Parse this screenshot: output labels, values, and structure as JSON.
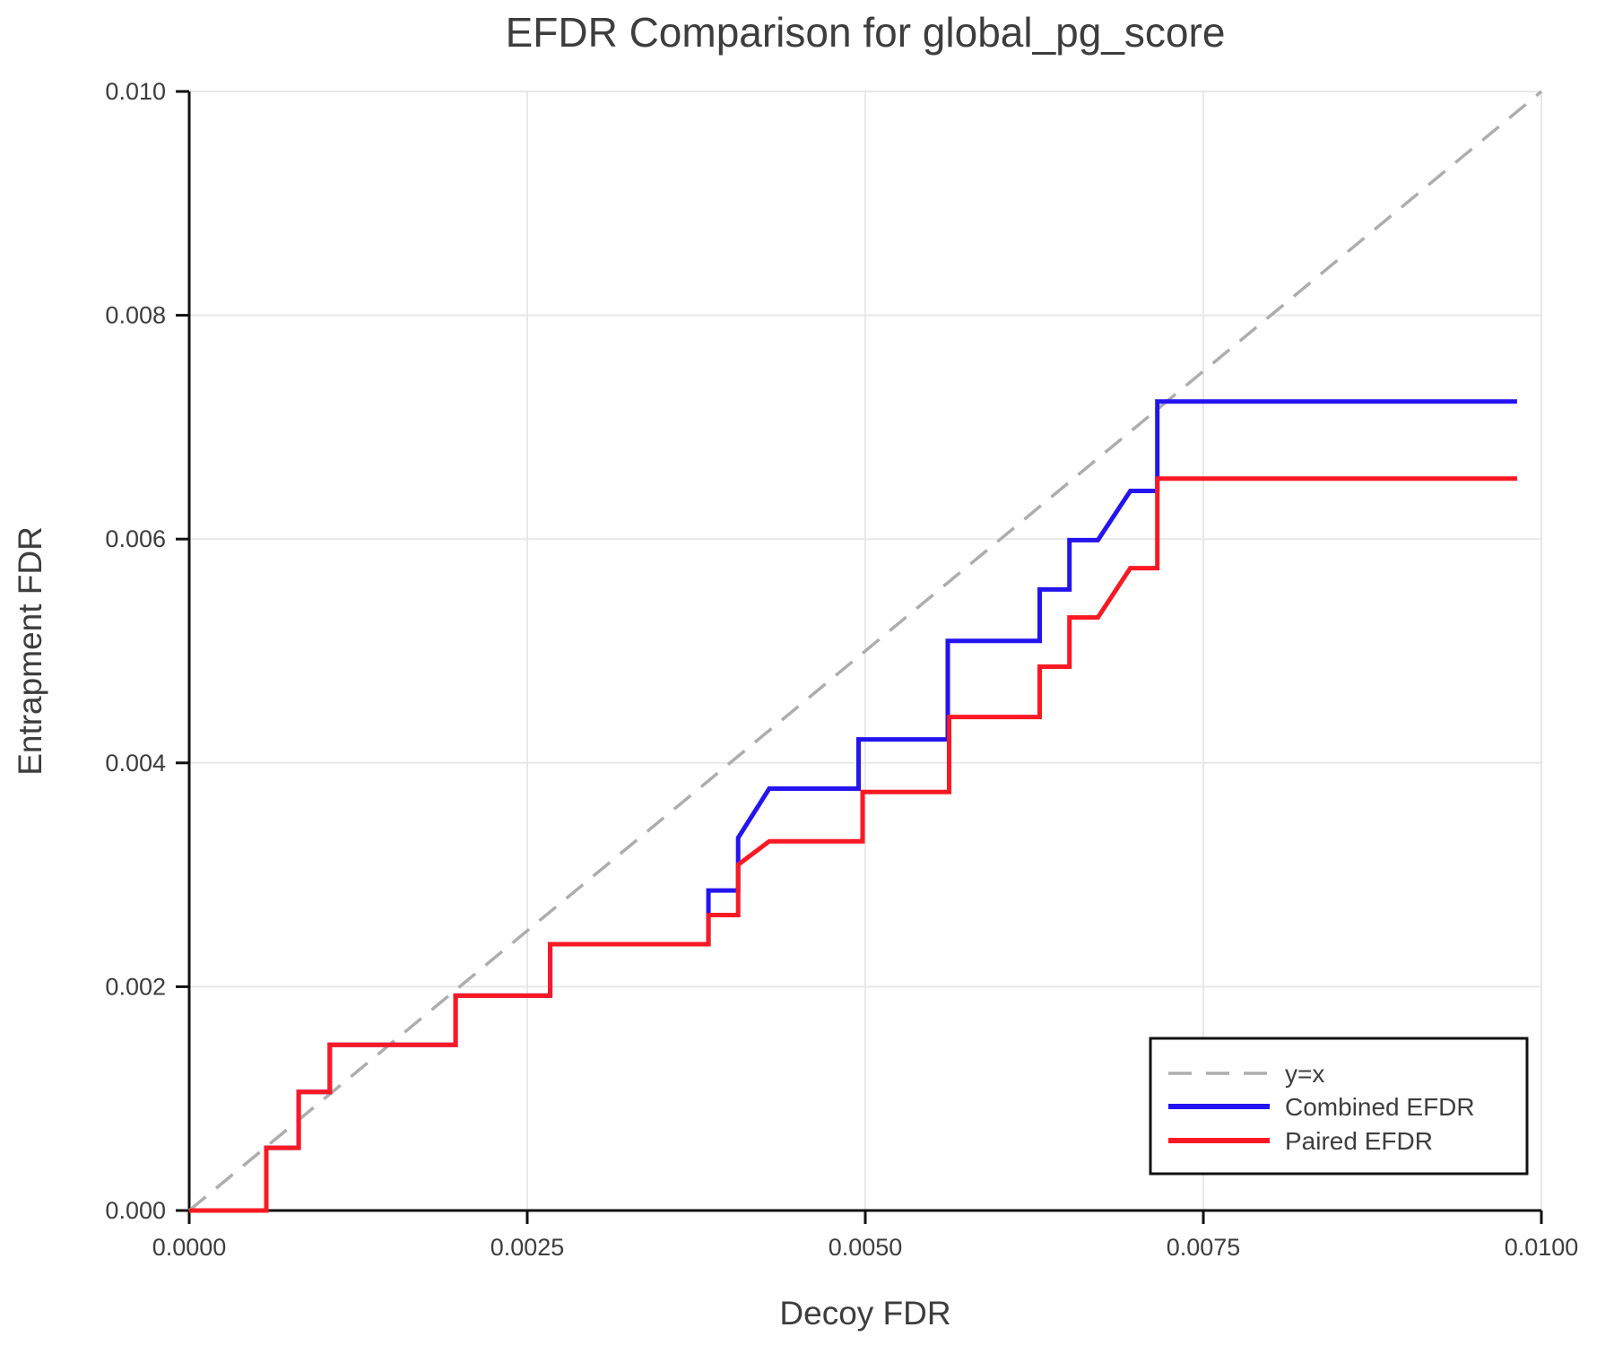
{
  "title": "EFDR Comparison for global_pg_score",
  "chart_data": {
    "type": "line",
    "title": "EFDR Comparison for global_pg_score",
    "xlabel": "Decoy FDR",
    "ylabel": "Entrapment FDR",
    "xlim": [
      0.0,
      0.01
    ],
    "ylim": [
      0.0,
      0.01
    ],
    "x_ticks": [
      0.0,
      0.0025,
      0.005,
      0.0075,
      0.01
    ],
    "x_tick_labels": [
      "0.0000",
      "0.0025",
      "0.0050",
      "0.0075",
      "0.0100"
    ],
    "y_ticks": [
      0.0,
      0.002,
      0.004,
      0.006,
      0.008,
      0.01
    ],
    "y_tick_labels": [
      "0.000",
      "0.002",
      "0.004",
      "0.006",
      "0.008",
      "0.010"
    ],
    "grid": true,
    "grid_color": "#e8e8e8",
    "axis_color": "#111111",
    "text_color": "#3d3d3d",
    "legend_position": "lower right",
    "identity_line": {
      "label": "y=x",
      "color": "#adadad",
      "dashed": true,
      "from": [
        0.0,
        0.0
      ],
      "to": [
        0.01,
        0.01
      ]
    },
    "series": [
      {
        "name": "Combined EFDR",
        "color": "#2314f0",
        "points": [
          [
            0.0,
            0.0
          ],
          [
            0.00057,
            0.0
          ],
          [
            0.00057,
            0.00056
          ],
          [
            0.00081,
            0.00056
          ],
          [
            0.00081,
            0.00106
          ],
          [
            0.00104,
            0.00106
          ],
          [
            0.00104,
            0.00148
          ],
          [
            0.00197,
            0.00148
          ],
          [
            0.00197,
            0.00192
          ],
          [
            0.00267,
            0.00192
          ],
          [
            0.00267,
            0.00238
          ],
          [
            0.00384,
            0.00238
          ],
          [
            0.00384,
            0.00286
          ],
          [
            0.00406,
            0.00286
          ],
          [
            0.00406,
            0.00333
          ],
          [
            0.00429,
            0.00377
          ],
          [
            0.00495,
            0.00377
          ],
          [
            0.00495,
            0.00421
          ],
          [
            0.00561,
            0.00421
          ],
          [
            0.00561,
            0.00509
          ],
          [
            0.00629,
            0.00509
          ],
          [
            0.00629,
            0.00555
          ],
          [
            0.00651,
            0.00555
          ],
          [
            0.00651,
            0.00599
          ],
          [
            0.00672,
            0.00599
          ],
          [
            0.00696,
            0.00643
          ],
          [
            0.00716,
            0.00643
          ],
          [
            0.00716,
            0.00723
          ],
          [
            0.00982,
            0.00723
          ]
        ]
      },
      {
        "name": "Paired EFDR",
        "color": "#fa1923",
        "points": [
          [
            0.0,
            0.0
          ],
          [
            0.00057,
            0.0
          ],
          [
            0.00057,
            0.00056
          ],
          [
            0.00081,
            0.00056
          ],
          [
            0.00081,
            0.00106
          ],
          [
            0.00104,
            0.00106
          ],
          [
            0.00104,
            0.00148
          ],
          [
            0.00197,
            0.00148
          ],
          [
            0.00197,
            0.00192
          ],
          [
            0.00267,
            0.00192
          ],
          [
            0.00267,
            0.00238
          ],
          [
            0.00384,
            0.00238
          ],
          [
            0.00384,
            0.00264
          ],
          [
            0.00406,
            0.00264
          ],
          [
            0.00406,
            0.00309
          ],
          [
            0.00429,
            0.0033
          ],
          [
            0.00498,
            0.0033
          ],
          [
            0.00498,
            0.00374
          ],
          [
            0.00562,
            0.00374
          ],
          [
            0.00562,
            0.00441
          ],
          [
            0.00629,
            0.00441
          ],
          [
            0.00629,
            0.00486
          ],
          [
            0.00651,
            0.00486
          ],
          [
            0.00651,
            0.0053
          ],
          [
            0.00672,
            0.0053
          ],
          [
            0.00696,
            0.00574
          ],
          [
            0.00716,
            0.00574
          ],
          [
            0.00716,
            0.00654
          ],
          [
            0.00982,
            0.00654
          ]
        ]
      }
    ],
    "legend_entries": [
      {
        "label": "y=x",
        "color": "#adadad",
        "dashed": true
      },
      {
        "label": "Combined EFDR",
        "color": "#2314f0",
        "dashed": false
      },
      {
        "label": "Paired EFDR",
        "color": "#fa1923",
        "dashed": false
      }
    ]
  }
}
